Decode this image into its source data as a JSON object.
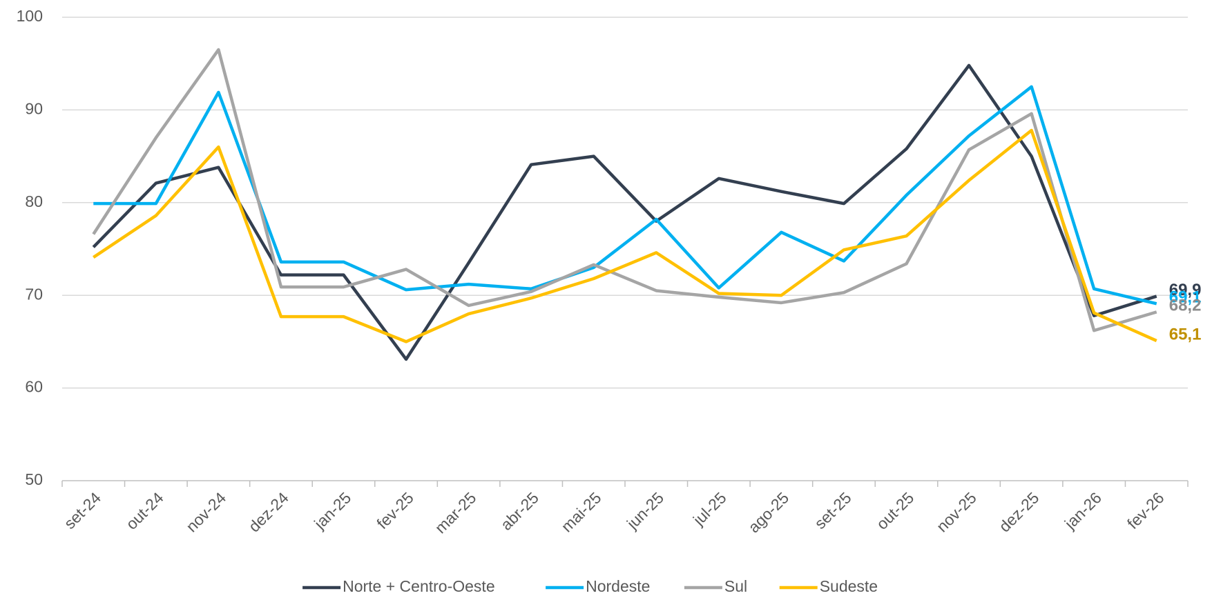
{
  "chart_data": {
    "type": "line",
    "categories": [
      "set-24",
      "out-24",
      "nov-24",
      "dez-24",
      "jan-25",
      "fev-25",
      "mar-25",
      "abr-25",
      "mai-25",
      "jun-25",
      "jul-25",
      "ago-25",
      "set-25",
      "out-25",
      "nov-25",
      "dez-25",
      "jan-26",
      "fev-26"
    ],
    "series": [
      {
        "name": "Norte + Centro-Oeste",
        "color": "#333f50",
        "label_color": "#333f50",
        "values": [
          75.2,
          82.1,
          83.8,
          72.2,
          72.2,
          63.1,
          73.5,
          84.1,
          85.0,
          78.0,
          82.6,
          81.2,
          79.9,
          85.8,
          94.8,
          85.0,
          67.8,
          69.9
        ],
        "value_labels": [
          null,
          null,
          null,
          null,
          null,
          null,
          null,
          null,
          null,
          null,
          null,
          null,
          null,
          null,
          null,
          null,
          null,
          "69,9"
        ]
      },
      {
        "name": "Nordeste",
        "color": "#00b0f0",
        "label_color": "#00b0f0",
        "values": [
          79.9,
          79.9,
          91.9,
          73.6,
          73.6,
          70.6,
          71.2,
          70.7,
          73.0,
          78.2,
          70.8,
          76.8,
          73.7,
          80.8,
          87.2,
          92.5,
          70.7,
          69.1
        ],
        "value_labels": [
          null,
          null,
          null,
          null,
          null,
          null,
          null,
          null,
          null,
          null,
          null,
          null,
          null,
          null,
          null,
          null,
          null,
          "69,1"
        ]
      },
      {
        "name": "Sul",
        "color": "#a5a5a5",
        "label_color": "#8c8c8c",
        "values": [
          76.6,
          87.0,
          96.5,
          70.9,
          70.9,
          72.8,
          68.9,
          70.4,
          73.3,
          70.5,
          69.8,
          69.2,
          70.3,
          73.4,
          85.7,
          89.6,
          66.2,
          68.2
        ],
        "value_labels": [
          null,
          null,
          null,
          null,
          null,
          null,
          null,
          null,
          null,
          null,
          null,
          null,
          null,
          null,
          null,
          null,
          null,
          "68,2"
        ]
      },
      {
        "name": "Sudeste",
        "color": "#ffc000",
        "label_color": "#c09000",
        "values": [
          74.1,
          78.6,
          86.0,
          67.7,
          67.7,
          65.0,
          68.0,
          69.7,
          71.8,
          74.6,
          70.2,
          70.0,
          74.9,
          76.4,
          82.4,
          87.8,
          68.1,
          65.1
        ],
        "value_labels": [
          null,
          null,
          null,
          null,
          null,
          null,
          null,
          null,
          null,
          null,
          null,
          null,
          null,
          null,
          null,
          null,
          null,
          "65,1"
        ]
      }
    ],
    "ylim": [
      50,
      100
    ],
    "yticks": [
      50,
      60,
      70,
      80,
      90,
      100
    ],
    "grid": true,
    "legend": "bottom"
  }
}
